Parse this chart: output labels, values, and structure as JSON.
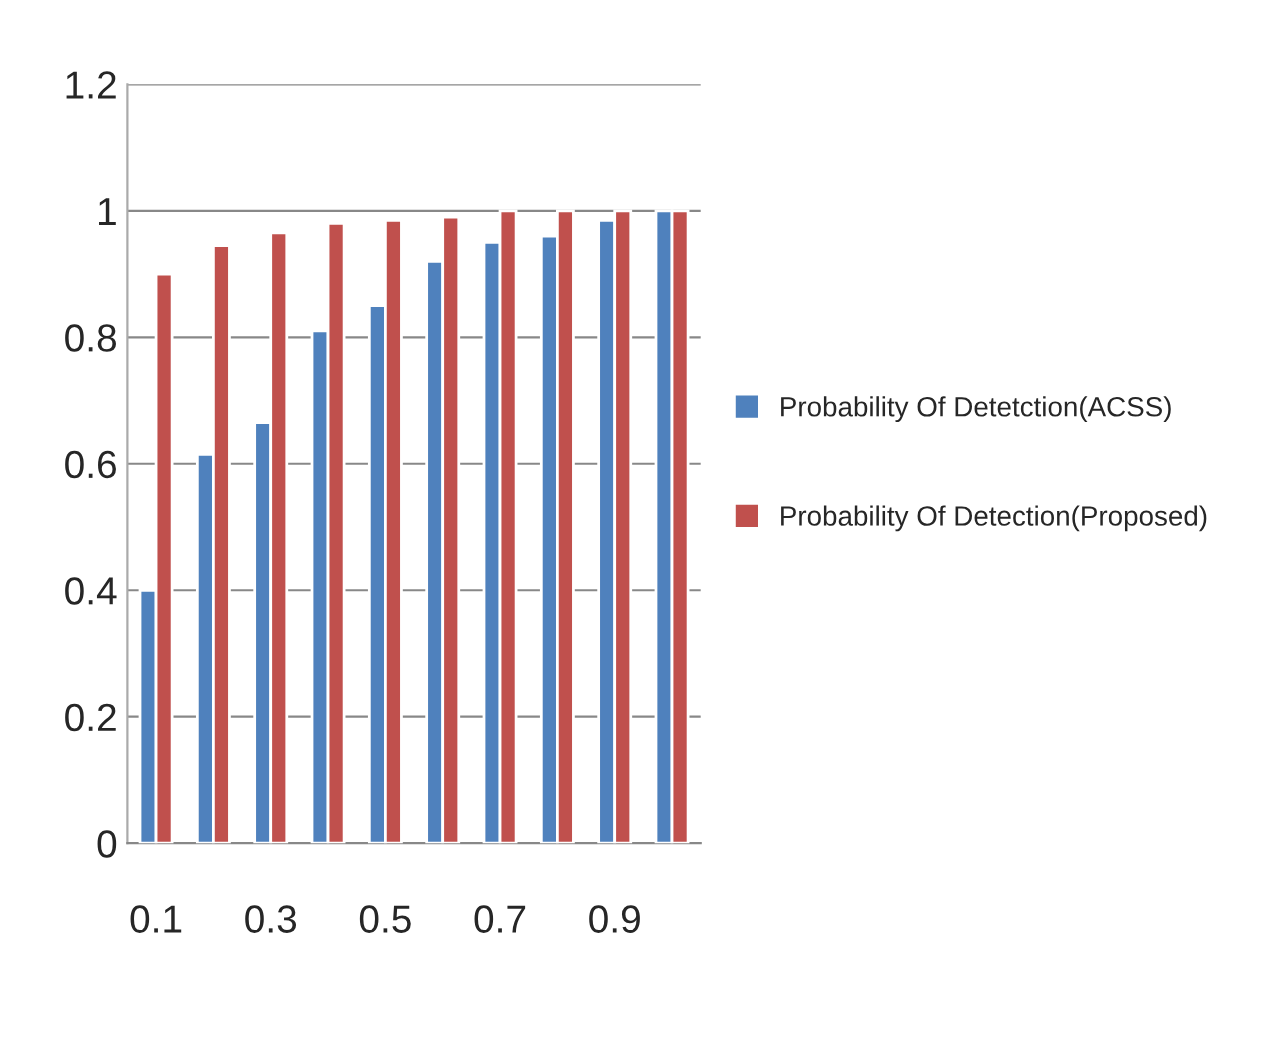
{
  "chart_data": {
    "type": "bar",
    "categories": [
      "0.1",
      null,
      "0.3",
      null,
      "0.5",
      null,
      "0.7",
      null,
      "0.9",
      null
    ],
    "series": [
      {
        "name": "Probability Of Detetction(ACSS)",
        "color": "#4f81bd",
        "values": [
          0.4,
          0.615,
          0.665,
          0.81,
          0.85,
          0.92,
          0.95,
          0.96,
          0.985,
          1.0
        ]
      },
      {
        "name": "Probability Of Detection(Proposed)",
        "color": "#c0504d",
        "values": [
          0.9,
          0.945,
          0.965,
          0.98,
          0.985,
          0.99,
          1.0,
          1.0,
          1.0,
          1.0
        ]
      }
    ],
    "ylim": [
      0,
      1.2
    ],
    "yticks": [
      0,
      0.2,
      0.4,
      0.6,
      0.8,
      1,
      1.2
    ],
    "grid": "y",
    "legend": "right"
  }
}
